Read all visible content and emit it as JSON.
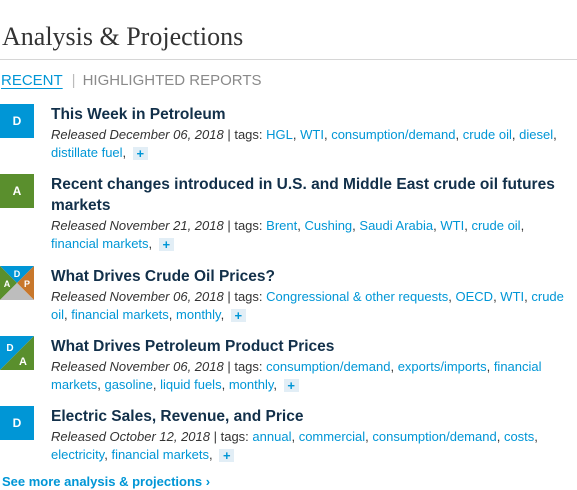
{
  "page_title": "Analysis & Projections",
  "tabs": {
    "recent": "RECENT",
    "highlighted": "HIGHLIGHTED REPORTS"
  },
  "tags_label": "tags:",
  "items": [
    {
      "badge": "D",
      "title": "This Week in Petroleum",
      "released": "Released December 06, 2018",
      "tags": [
        "HGL",
        "WTI",
        "consumption/demand",
        "crude oil",
        "diesel",
        "distillate fuel"
      ]
    },
    {
      "badge": "A",
      "title": "Recent changes introduced in U.S. and Middle East crude oil futures markets",
      "released": "Released November 21, 2018",
      "tags": [
        "Brent",
        "Cushing",
        "Saudi Arabia",
        "WTI",
        "crude oil",
        "financial markets"
      ]
    },
    {
      "badge": "D A P",
      "title": "What Drives Crude Oil Prices?",
      "released": "Released November 06, 2018",
      "tags": [
        "Congressional & other requests",
        "OECD",
        "WTI",
        "crude oil",
        "financial markets",
        "monthly"
      ]
    },
    {
      "badge": "D A",
      "title": "What Drives Petroleum Product Prices",
      "released": "Released November 06, 2018",
      "tags": [
        "consumption/demand",
        "exports/imports",
        "financial markets",
        "gasoline",
        "liquid fuels",
        "monthly"
      ]
    },
    {
      "badge": "D",
      "title": "Electric Sales, Revenue, and Price",
      "released": "Released October 12, 2018",
      "tags": [
        "annual",
        "commercial",
        "consumption/demand",
        "costs",
        "electricity",
        "financial markets"
      ]
    }
  ],
  "plus_label": "+",
  "see_more": "See more analysis & projections ›",
  "colors": {
    "data": "#0096d6",
    "analysis": "#5a8f2d",
    "projections": "#c8772b",
    "title_text": "#12304a"
  }
}
